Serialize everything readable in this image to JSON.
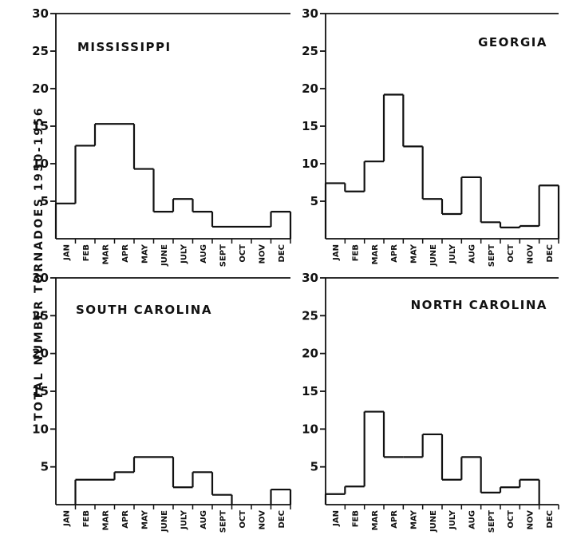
{
  "chart_data": [
    {
      "type": "step",
      "title": "MISSISSIPPI",
      "categories": [
        "JAN",
        "FEB",
        "MAR",
        "APR",
        "MAY",
        "JUNE",
        "JULY",
        "AUG",
        "SEPT",
        "OCT",
        "NOV",
        "DEC"
      ],
      "values": [
        4.7,
        12.4,
        15.3,
        15.3,
        9.3,
        3.6,
        5.3,
        3.6,
        1.6,
        1.6,
        1.6,
        3.6
      ],
      "ylim": [
        0,
        30
      ],
      "yticks": [
        "5",
        "10",
        "15",
        "20",
        "25",
        "30"
      ]
    },
    {
      "type": "step",
      "title": "GEORGIA",
      "categories": [
        "JAN",
        "FEB",
        "MAR",
        "APR",
        "MAY",
        "JUNE",
        "JULY",
        "AUG",
        "SEPT",
        "OCT",
        "NOV",
        "DEC"
      ],
      "values": [
        7.4,
        6.3,
        10.3,
        19.2,
        12.3,
        5.3,
        3.3,
        8.2,
        2.2,
        1.5,
        1.7,
        7.1
      ],
      "ylim": [
        0,
        30
      ],
      "yticks": [
        "5",
        "10",
        "15",
        "20",
        "25",
        "30"
      ]
    },
    {
      "type": "step",
      "title": "SOUTH CAROLINA",
      "categories": [
        "JAN",
        "FEB",
        "MAR",
        "APR",
        "MAY",
        "JUNE",
        "JULY",
        "AUG",
        "SEPT",
        "OCT",
        "NOV",
        "DEC"
      ],
      "values": [
        0,
        3.3,
        3.3,
        4.3,
        6.3,
        6.3,
        2.3,
        4.3,
        1.3,
        0,
        0,
        2
      ],
      "ylim": [
        0,
        30
      ],
      "yticks": [
        "5",
        "10",
        "15",
        "20",
        "25",
        "30"
      ]
    },
    {
      "type": "step",
      "title": "NORTH CAROLINA",
      "categories": [
        "JAN",
        "FEB",
        "MAR",
        "APR",
        "MAY",
        "JUNE",
        "JULY",
        "AUG",
        "SEPT",
        "OCT",
        "NOV",
        "DEC"
      ],
      "values": [
        1.4,
        2.4,
        12.3,
        6.3,
        6.3,
        9.3,
        3.3,
        6.3,
        1.6,
        2.3,
        3.3,
        0
      ],
      "ylim": [
        0,
        30
      ],
      "yticks": [
        "5",
        "10",
        "15",
        "20",
        "25",
        "30"
      ]
    }
  ],
  "ylabel": "TOTAL NUMBER TORNADOES 1950-1956"
}
